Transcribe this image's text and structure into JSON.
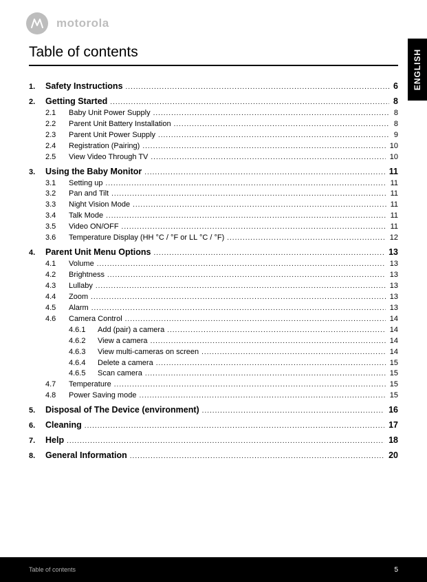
{
  "brand": "motorola",
  "lang_tab": "ENGLISH",
  "title": "Table of contents",
  "footer_left": "Table of contents",
  "footer_page": "5",
  "toc": [
    {
      "type": "l1",
      "num": "1.",
      "label": "Safety Instructions",
      "pg": "6"
    },
    {
      "type": "l1",
      "num": "2.",
      "label": "Getting Started",
      "pg": "8"
    },
    {
      "type": "l2",
      "num": "2.1",
      "label": "Baby Unit Power Supply",
      "pg": "8"
    },
    {
      "type": "l2",
      "num": "2.2",
      "label": "Parent Unit Battery Installation",
      "pg": "8"
    },
    {
      "type": "l2",
      "num": "2.3",
      "label": "Parent Unit Power Supply",
      "pg": "9"
    },
    {
      "type": "l2",
      "num": "2.4",
      "label": "Registration (Pairing)",
      "pg": "10"
    },
    {
      "type": "l2",
      "num": "2.5",
      "label": "View Video Through TV",
      "pg": "10"
    },
    {
      "type": "l1",
      "num": "3.",
      "label": "Using the Baby Monitor",
      "pg": "11"
    },
    {
      "type": "l2",
      "num": "3.1",
      "label": "Setting up",
      "pg": "11"
    },
    {
      "type": "l2",
      "num": "3.2",
      "label": "Pan and Tilt",
      "pg": "11"
    },
    {
      "type": "l2",
      "num": "3.3",
      "label": "Night Vision Mode",
      "pg": "11"
    },
    {
      "type": "l2",
      "num": "3.4",
      "label": "Talk Mode",
      "pg": "11"
    },
    {
      "type": "l2",
      "num": "3.5",
      "label": "Video ON/OFF",
      "pg": "11"
    },
    {
      "type": "l2",
      "num": "3.6",
      "label": "Temperature Display (HH °C / °F or LL °C / °F)",
      "pg": "12"
    },
    {
      "type": "l1",
      "num": "4.",
      "label": "Parent Unit Menu Options",
      "pg": "13"
    },
    {
      "type": "l2",
      "num": "4.1",
      "label": "Volume",
      "pg": "13"
    },
    {
      "type": "l2",
      "num": "4.2",
      "label": "Brightness",
      "pg": "13"
    },
    {
      "type": "l2",
      "num": "4.3",
      "label": "Lullaby",
      "pg": "13"
    },
    {
      "type": "l2",
      "num": "4.4",
      "label": "Zoom",
      "pg": "13"
    },
    {
      "type": "l2",
      "num": "4.5",
      "label": "Alarm",
      "pg": "13"
    },
    {
      "type": "l2",
      "num": "4.6",
      "label": "Camera Control",
      "pg": "14"
    },
    {
      "type": "l3",
      "num": "4.6.1",
      "label": "Add (pair) a camera",
      "pg": "14"
    },
    {
      "type": "l3",
      "num": "4.6.2",
      "label": "View a camera",
      "pg": "14"
    },
    {
      "type": "l3",
      "num": "4.6.3",
      "label": "View multi-cameras on screen",
      "pg": "14"
    },
    {
      "type": "l3",
      "num": "4.6.4",
      "label": "Delete a camera",
      "pg": "15"
    },
    {
      "type": "l3",
      "num": "4.6.5",
      "label": "Scan camera",
      "pg": "15"
    },
    {
      "type": "l2",
      "num": "4.7",
      "label": "Temperature",
      "pg": "15"
    },
    {
      "type": "l2",
      "num": "4.8",
      "label": "Power Saving mode",
      "pg": "15"
    },
    {
      "type": "l1",
      "num": "5.",
      "label": "Disposal of The Device (environment)",
      "pg": "16"
    },
    {
      "type": "l1",
      "num": "6.",
      "label": "Cleaning",
      "pg": "17"
    },
    {
      "type": "l1",
      "num": "7.",
      "label": "Help",
      "pg": "18"
    },
    {
      "type": "l1",
      "num": "8.",
      "label": "General Information",
      "pg": "20"
    }
  ]
}
